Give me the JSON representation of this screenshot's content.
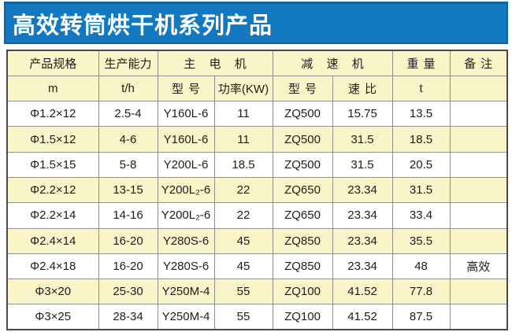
{
  "page_title": "高效转筒烘干机系列产品",
  "colors": {
    "title_bar_bg": "#1278BF",
    "title_bar_border": "#0D63A5",
    "title_text": "#FFFFFF",
    "table_header_bg": "#FAF5C8",
    "row_stripe_bg": "#FAF5C8",
    "row_plain_bg": "#FFFFFF",
    "outer_border": "#4A4A4A",
    "inner_border": "#8F8F8F",
    "cell_text": "#1D1D1D"
  },
  "table": {
    "header_groups": [
      {
        "label": "产品规格",
        "colspan": 1
      },
      {
        "label": "生产能力",
        "colspan": 1
      },
      {
        "label": "主电机",
        "colspan": 2
      },
      {
        "label": "减速机",
        "colspan": 2
      },
      {
        "label": "重量",
        "colspan": 1
      },
      {
        "label": "备注",
        "colspan": 1
      }
    ],
    "header_units": [
      "m",
      "t/h",
      "型号",
      "功率(KW)",
      "型号",
      "速比",
      "t",
      ""
    ],
    "rows": [
      [
        "Φ1.2×12",
        "2.5-4",
        "Y160L-6",
        "11",
        "ZQ500",
        "15.75",
        "13.5",
        ""
      ],
      [
        "Φ1.5×12",
        "4-6",
        "Y160L-6",
        "11",
        "ZQ500",
        "31.5",
        "18.5",
        ""
      ],
      [
        "Φ1.5×15",
        "5-8",
        "Y200L-6",
        "18.5",
        "ZQ500",
        "31.5",
        "20.5",
        ""
      ],
      [
        "Φ2.2×12",
        "13-15",
        "Y200L₂-6",
        "22",
        "ZQ650",
        "23.34",
        "31.5",
        ""
      ],
      [
        "Φ2.2×14",
        "14-16",
        "Y200L₂-6",
        "22",
        "ZQ650",
        "23.34",
        "33.4",
        ""
      ],
      [
        "Φ2.4×14",
        "16-20",
        "Y280S-6",
        "45",
        "ZQ850",
        "23.34",
        "35.5",
        ""
      ],
      [
        "Φ2.4×18",
        "16-20",
        "Y280S-6",
        "45",
        "ZQ850",
        "23.34",
        "48",
        "高效"
      ],
      [
        "Φ3×20",
        "25-30",
        "Y250M-4",
        "55",
        "ZQ100",
        "41.52",
        "77.8",
        ""
      ],
      [
        "Φ3×25",
        "28-34",
        "Y250M-4",
        "55",
        "ZQ100",
        "41.52",
        "87.5",
        ""
      ]
    ]
  }
}
